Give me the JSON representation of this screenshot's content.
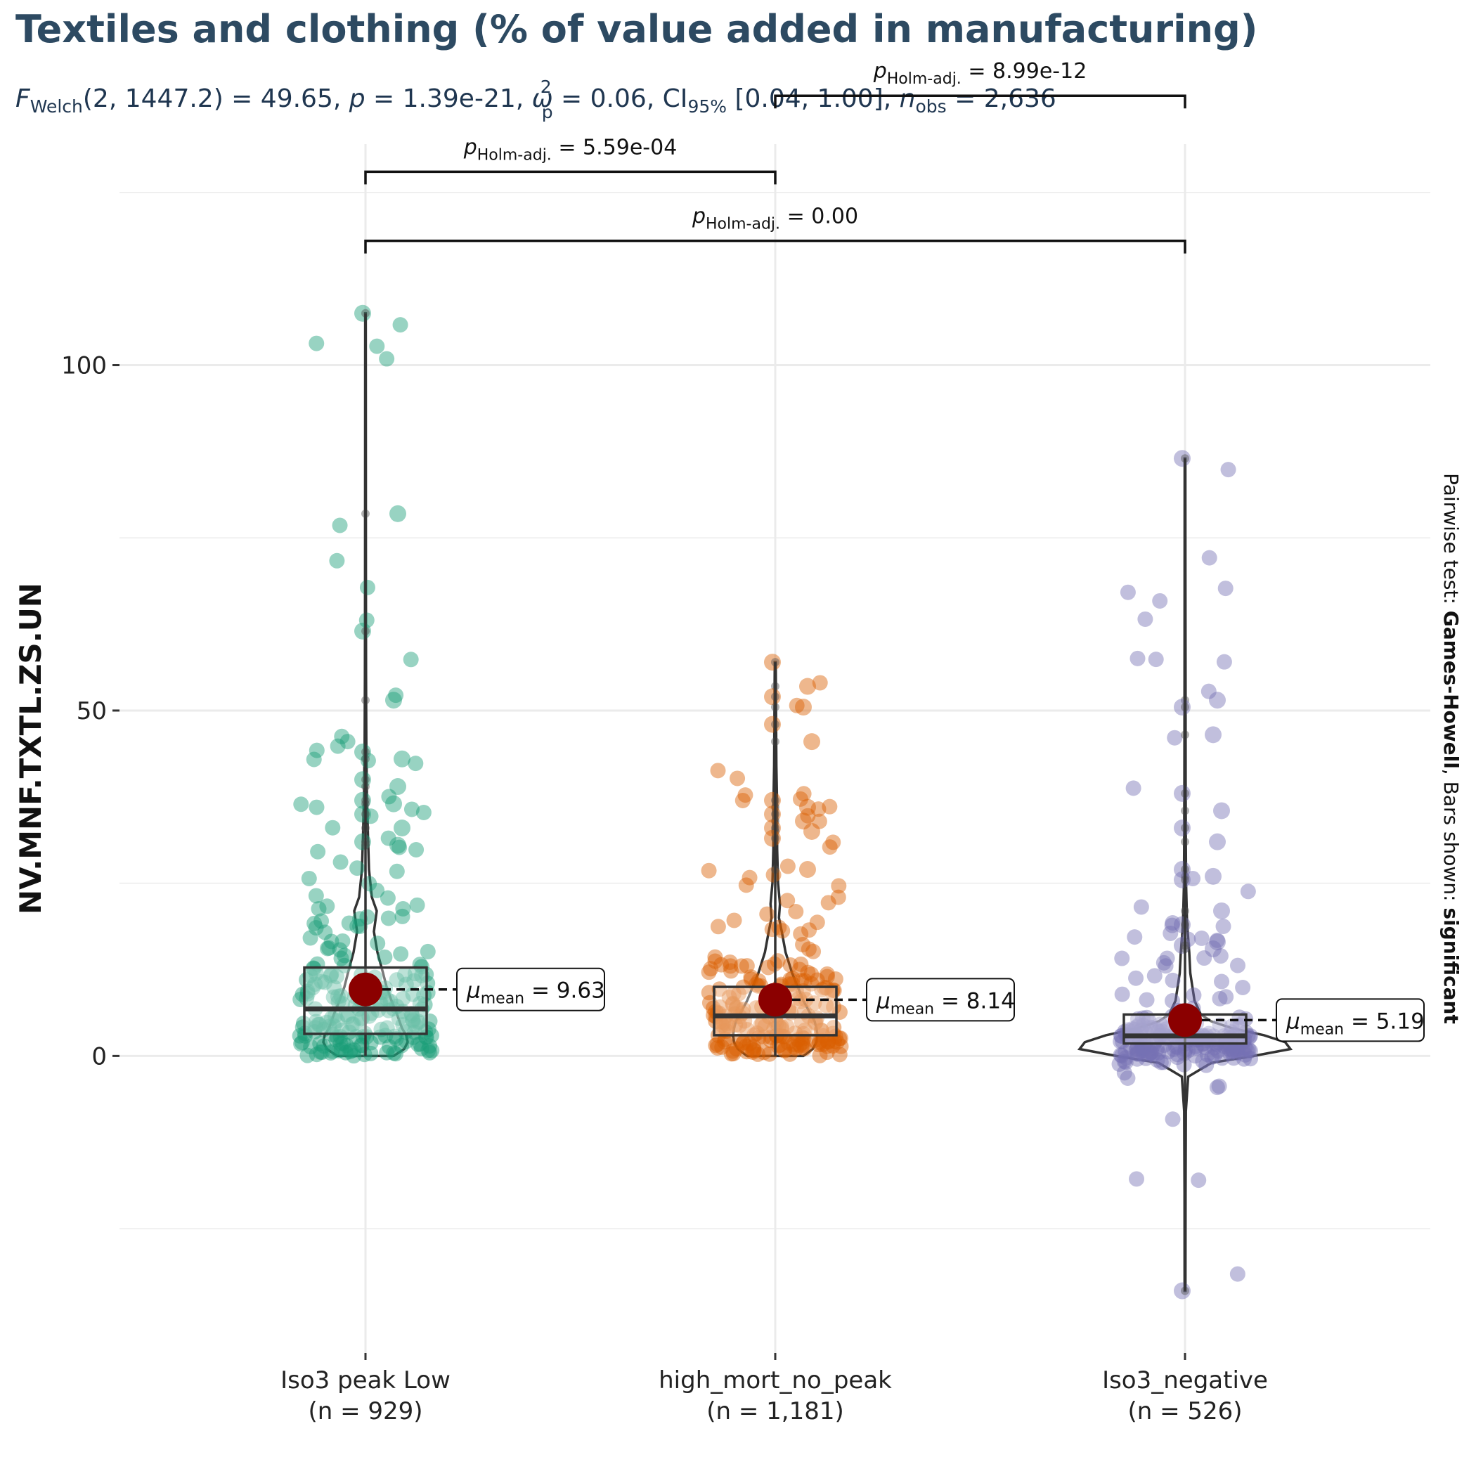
{
  "chart_data": {
    "type": "violin-box-scatter",
    "title": "Textiles and clothing (% of value added in manufacturing)",
    "subtitle": {
      "stat_symbol": "F",
      "stat_sub": "Welch",
      "stat_args": "(2, 1447.2) = 49.65, ",
      "p_text": "p",
      "p_value": " = 1.39e-21, ",
      "effect_symbol": "ω",
      "effect_sup": "2",
      "effect_sub": "p",
      "effect_value": " = 0.06, CI",
      "ci_sub": "95%",
      "ci_value": " [0.04, 1.00], ",
      "n_text": "n",
      "n_sub": "obs",
      "n_value": " = 2,636"
    },
    "ylabel": "NV.MNF.TXTL.ZS.UN",
    "ylim": [
      -43,
      132
    ],
    "yticks": [
      0,
      50,
      100
    ],
    "ytick_labels": [
      "0",
      "50",
      "100"
    ],
    "right_caption": {
      "prefix": "Pairwise test: ",
      "test": "Games-Howell",
      "middle": ", Bars shown: ",
      "shown": "significant"
    },
    "groups": [
      {
        "label": "Iso3 peak  Low",
        "n_label": "(n = 929)",
        "color": "#1b9e77",
        "q1": 3.2,
        "median": 6.8,
        "q3": 12.8,
        "whisker_low": 0,
        "whisker_high": 107.5,
        "mean": 9.63,
        "mean_label": "9.63",
        "outliers": [
          107.5,
          78.5,
          61.5,
          51.5,
          44,
          43,
          40,
          39,
          37,
          36.5,
          35,
          33,
          31,
          30.5
        ],
        "violin": [
          [
            0,
            0.4
          ],
          [
            1,
            0.55
          ],
          [
            2,
            0.6
          ],
          [
            3,
            0.58
          ],
          [
            4,
            0.52
          ],
          [
            6,
            0.45
          ],
          [
            8,
            0.37
          ],
          [
            10,
            0.3
          ],
          [
            12,
            0.25
          ],
          [
            15,
            0.17
          ],
          [
            18,
            0.12
          ],
          [
            21,
            0.16
          ],
          [
            23,
            0.09
          ],
          [
            27,
            0.05
          ],
          [
            32,
            0.035
          ],
          [
            38,
            0.02
          ],
          [
            45,
            0.012
          ],
          [
            55,
            0.008
          ],
          [
            70,
            0.006
          ],
          [
            90,
            0.005
          ],
          [
            107.5,
            0.004
          ]
        ]
      },
      {
        "label": "high_mort_no_peak",
        "n_label": "(n = 1,181)",
        "color": "#d95f02",
        "q1": 3,
        "median": 5.8,
        "q3": 10,
        "whisker_low": 0,
        "whisker_high": 57,
        "mean": 8.14,
        "mean_label": "8.14",
        "outliers": [
          57,
          53.5,
          52,
          50.5,
          48,
          45.5,
          37,
          36,
          35,
          34,
          33,
          32.5,
          31.5,
          27
        ],
        "violin": [
          [
            0,
            0.3
          ],
          [
            1,
            0.4
          ],
          [
            2,
            0.44
          ],
          [
            3,
            0.45
          ],
          [
            4,
            0.44
          ],
          [
            5,
            0.42
          ],
          [
            6,
            0.38
          ],
          [
            8,
            0.3
          ],
          [
            10,
            0.24
          ],
          [
            12,
            0.18
          ],
          [
            15,
            0.11
          ],
          [
            18,
            0.07
          ],
          [
            20,
            0.04
          ],
          [
            22,
            0.05
          ],
          [
            25,
            0.03
          ],
          [
            30,
            0.02
          ],
          [
            36,
            0.02
          ],
          [
            42,
            0.012
          ],
          [
            50,
            0.008
          ],
          [
            57,
            0.005
          ]
        ]
      },
      {
        "label": "Iso3_negative",
        "n_label": "(n = 526)",
        "color": "#7570b3",
        "q1": 1.8,
        "median": 2.9,
        "q3": 6,
        "whisker_low": -34,
        "whisker_high": 86.5,
        "mean": 5.19,
        "mean_label": "5.19",
        "outliers": [
          86.5,
          51.5,
          50.5,
          46.5,
          38,
          35.5,
          33,
          31,
          27,
          26,
          25.5,
          21,
          19,
          16.5,
          16,
          15.5,
          -34
        ],
        "violin": [
          [
            -34,
            0.004
          ],
          [
            -20,
            0.005
          ],
          [
            -8,
            0.008
          ],
          [
            -3,
            0.03
          ],
          [
            -1,
            0.25
          ],
          [
            0,
            0.65
          ],
          [
            1,
            1.0
          ],
          [
            2,
            0.95
          ],
          [
            3,
            0.75
          ],
          [
            4,
            0.45
          ],
          [
            5,
            0.25
          ],
          [
            6,
            0.15
          ],
          [
            8,
            0.09
          ],
          [
            10,
            0.07
          ],
          [
            12,
            0.05
          ],
          [
            15,
            0.04
          ],
          [
            18,
            0.025
          ],
          [
            20,
            0.018
          ],
          [
            25,
            0.01
          ],
          [
            30,
            0.008
          ],
          [
            40,
            0.006
          ],
          [
            55,
            0.005
          ],
          [
            70,
            0.004
          ],
          [
            86.5,
            0.003
          ]
        ]
      }
    ],
    "comparisons": [
      {
        "from": 0,
        "to": 1,
        "label_value": " = 5.59e-04",
        "bracket_y": 128
      },
      {
        "from": 1,
        "to": 2,
        "label_value": " = 8.99e-12",
        "bracket_y": 139
      },
      {
        "from": 0,
        "to": 2,
        "label_value": " = 0.00",
        "bracket_y": 118
      }
    ],
    "comparison_label": {
      "p": "p",
      "sub": "Holm-adj."
    },
    "mean_label": {
      "mu": "μ",
      "sub": "mean",
      "eq": " = "
    }
  }
}
